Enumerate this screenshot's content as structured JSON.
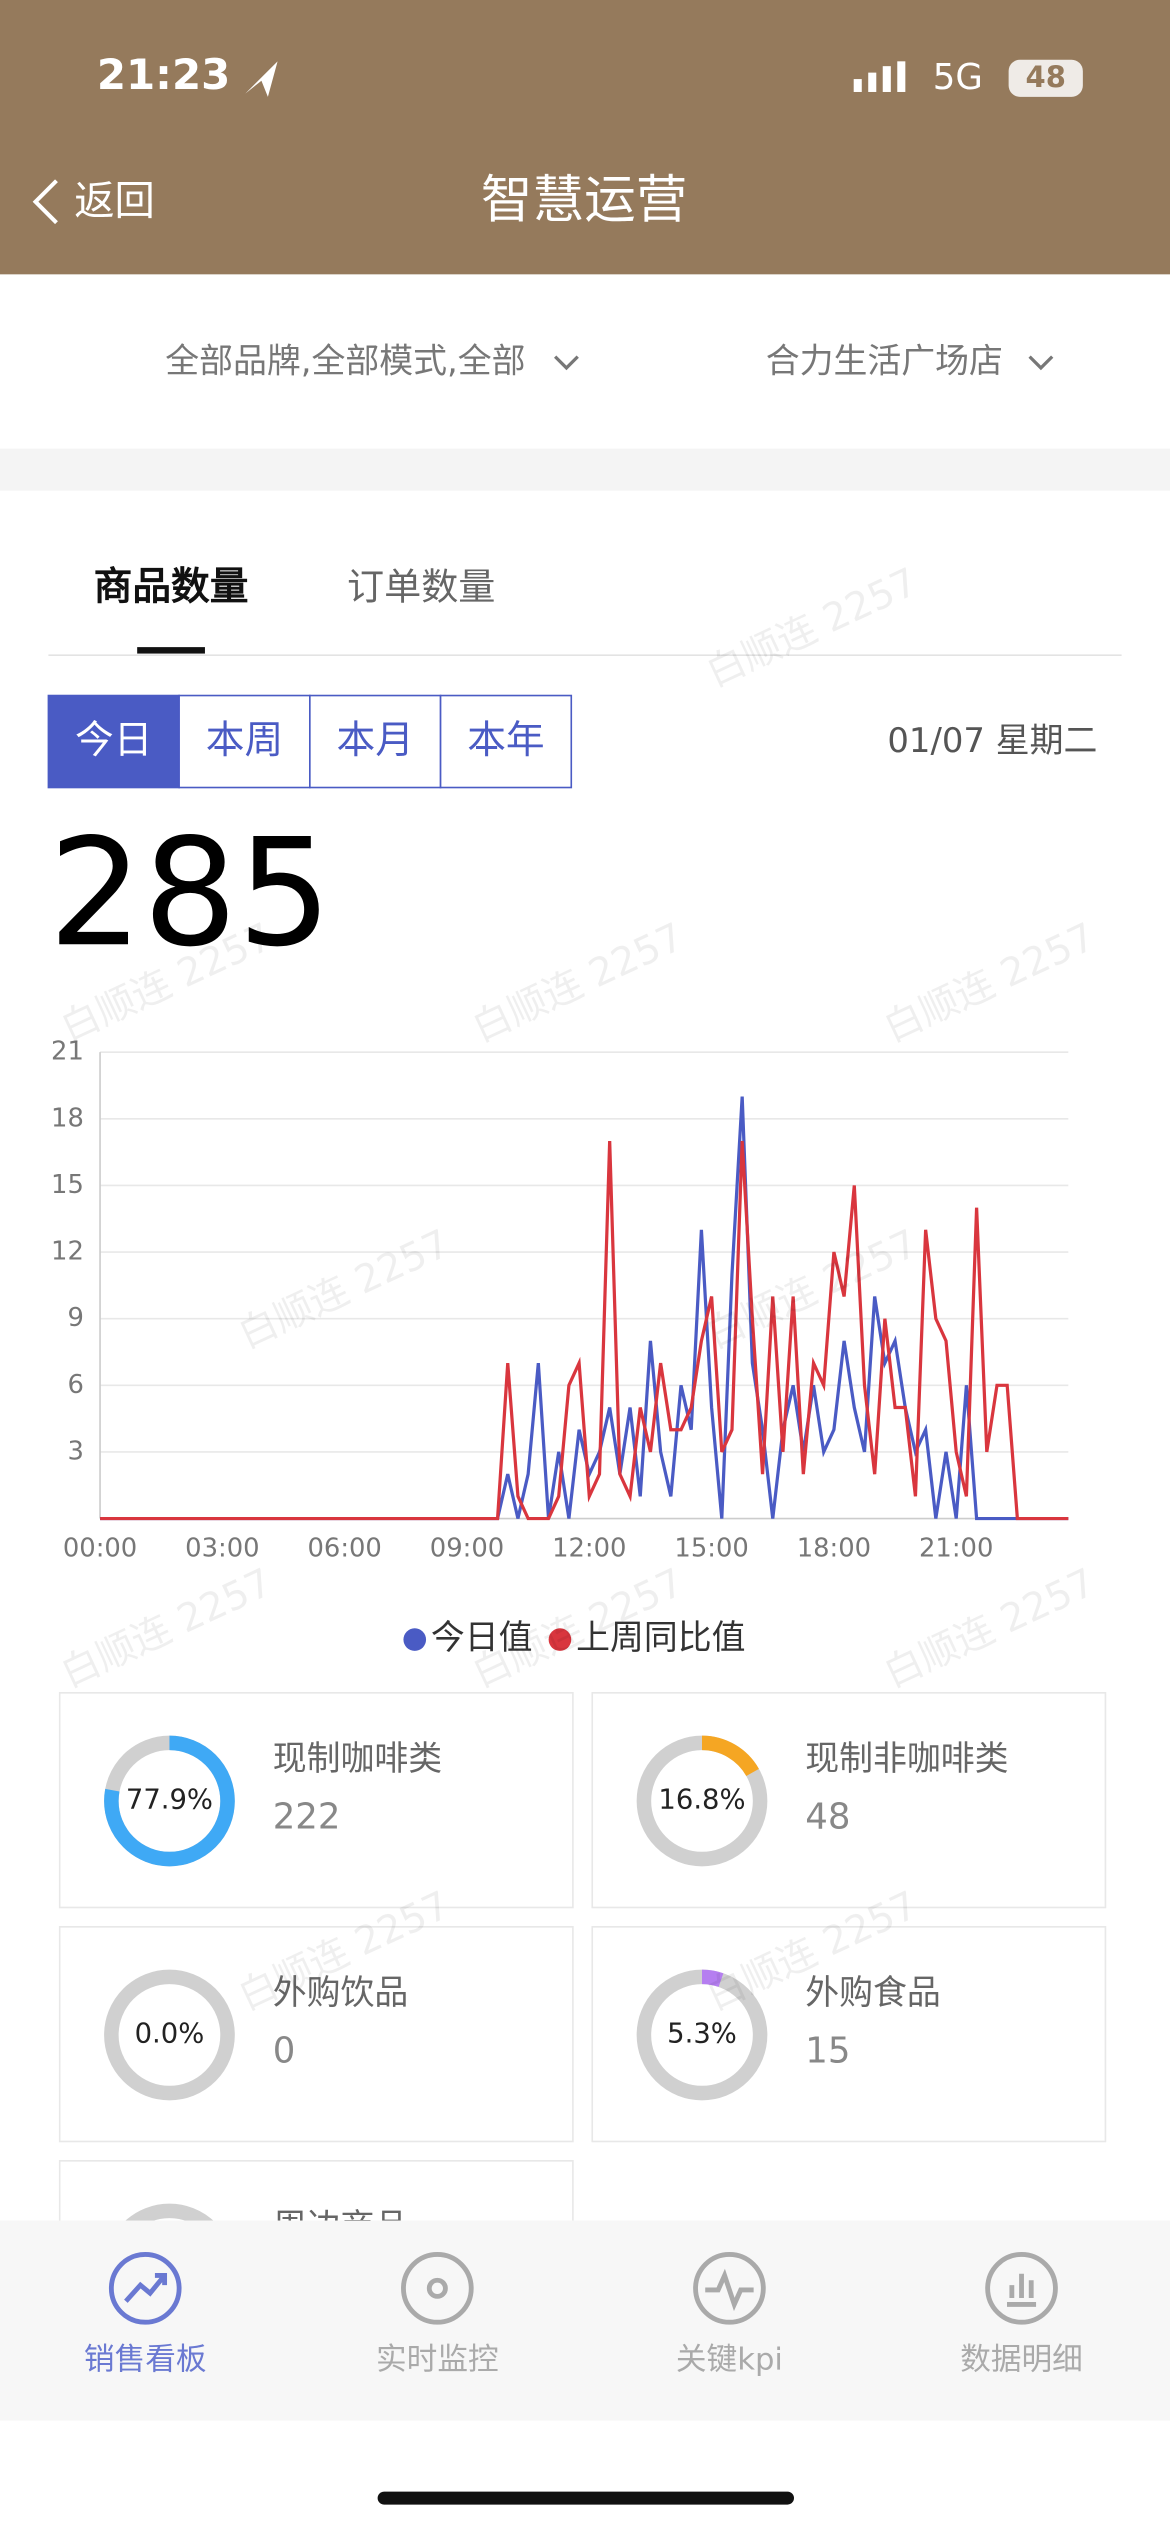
{
  "status": {
    "time": "21:23",
    "network": "5G",
    "battery": "48"
  },
  "nav": {
    "back": "返回",
    "title": "智慧运营"
  },
  "filters": [
    "全部品牌,全部模式,全部",
    "合力生活广场店"
  ],
  "tabs": [
    "商品数量",
    "订单数量"
  ],
  "periods": [
    "今日",
    "本周",
    "本月",
    "本年"
  ],
  "date": "01/07 星期二",
  "total": 285,
  "watermark": "白顺连 2257",
  "chart_data": {
    "type": "line",
    "categories": [
      "00:00",
      null,
      null,
      null,
      null,
      null,
      null,
      null,
      null,
      null,
      null,
      null,
      "03:00",
      null,
      null,
      null,
      null,
      null,
      null,
      null,
      null,
      null,
      null,
      null,
      "06:00",
      null,
      null,
      null,
      null,
      null,
      null,
      null,
      null,
      null,
      null,
      null,
      "09:00",
      null,
      null,
      null,
      null,
      null,
      null,
      null,
      null,
      null,
      null,
      null,
      "12:00",
      null,
      null,
      null,
      null,
      null,
      null,
      null,
      null,
      null,
      null,
      null,
      "15:00",
      null,
      null,
      null,
      null,
      null,
      null,
      null,
      null,
      null,
      null,
      null,
      "18:00",
      null,
      null,
      null,
      null,
      null,
      null,
      null,
      null,
      null,
      null,
      null,
      "21:00",
      null,
      null,
      null,
      null,
      null,
      null,
      null,
      null,
      null,
      null,
      null
    ],
    "series": [
      {
        "name": "今日值",
        "color": "#4a5bc4",
        "values": [
          0,
          0,
          0,
          0,
          0,
          0,
          0,
          0,
          0,
          0,
          0,
          0,
          0,
          0,
          0,
          0,
          0,
          0,
          0,
          0,
          0,
          0,
          0,
          0,
          0,
          0,
          0,
          0,
          0,
          0,
          0,
          0,
          0,
          0,
          0,
          0,
          0,
          0,
          0,
          0,
          2,
          0,
          2,
          7,
          0,
          3,
          0,
          4,
          2,
          3,
          5,
          2,
          5,
          1,
          8,
          3,
          1,
          6,
          4,
          13,
          5,
          0,
          11,
          19,
          7,
          4,
          0,
          4,
          6,
          3,
          6,
          3,
          4,
          8,
          5,
          3,
          10,
          7,
          8,
          5,
          3,
          4,
          0,
          3,
          0,
          6,
          0,
          0,
          0,
          0,
          0,
          0,
          0,
          0,
          0,
          0
        ]
      },
      {
        "name": "上周同比值",
        "color": "#d9363e",
        "values": [
          0,
          0,
          0,
          0,
          0,
          0,
          0,
          0,
          0,
          0,
          0,
          0,
          0,
          0,
          0,
          0,
          0,
          0,
          0,
          0,
          0,
          0,
          0,
          0,
          0,
          0,
          0,
          0,
          0,
          0,
          0,
          0,
          0,
          0,
          0,
          0,
          0,
          0,
          0,
          0,
          7,
          1,
          0,
          0,
          0,
          1,
          6,
          7,
          1,
          2,
          17,
          2,
          1,
          5,
          3,
          7,
          4,
          4,
          5,
          8,
          10,
          3,
          4,
          17,
          9,
          2,
          10,
          3,
          10,
          2,
          7,
          6,
          12,
          10,
          15,
          6,
          2,
          9,
          5,
          5,
          1,
          13,
          9,
          8,
          3,
          1,
          14,
          3,
          6,
          6,
          0,
          0,
          0,
          0,
          0,
          0
        ]
      }
    ],
    "ylim": [
      0,
      21
    ],
    "yticks": [
      3,
      6,
      9,
      12,
      15,
      18,
      21
    ],
    "grid": true
  },
  "cards": [
    {
      "name": "现制咖啡类",
      "value": 77.9,
      "value_label": "77.9%",
      "count": 222,
      "color": "#3fa9f5"
    },
    {
      "name": "现制非咖啡类",
      "value": 16.8,
      "value_label": "16.8%",
      "count": 48,
      "color": "#f5a623"
    },
    {
      "name": "外购饮品",
      "value": 0.0,
      "value_label": "0.0%",
      "count": 0,
      "color": "#9b6cf0"
    },
    {
      "name": "外购食品",
      "value": 5.3,
      "value_label": "5.3%",
      "count": 15,
      "color": "#b57ef0"
    },
    {
      "name": "周边商品"
    }
  ],
  "tabbar": [
    "销售看板",
    "实时监控",
    "关键kpi",
    "数据明细"
  ]
}
